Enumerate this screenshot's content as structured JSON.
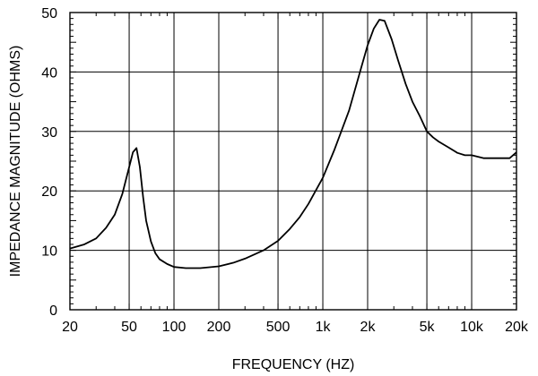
{
  "chart_data": {
    "type": "line",
    "xlabel": "FREQUENCY  (HZ)",
    "ylabel": "IMPEDANCE MAGNITUDE  (OHMS)",
    "x_scale": "log",
    "xlim": [
      20,
      20000
    ],
    "ylim": [
      0,
      50
    ],
    "grid": true,
    "x_ticks": [
      {
        "value": 20,
        "label": "20"
      },
      {
        "value": 50,
        "label": "50"
      },
      {
        "value": 100,
        "label": "100"
      },
      {
        "value": 200,
        "label": "200"
      },
      {
        "value": 500,
        "label": "500"
      },
      {
        "value": 1000,
        "label": "1k"
      },
      {
        "value": 2000,
        "label": "2k"
      },
      {
        "value": 5000,
        "label": "5k"
      },
      {
        "value": 10000,
        "label": "10k"
      },
      {
        "value": 20000,
        "label": "20k"
      }
    ],
    "y_ticks": [
      {
        "value": 0,
        "label": "0"
      },
      {
        "value": 10,
        "label": "10"
      },
      {
        "value": 20,
        "label": "20"
      },
      {
        "value": 30,
        "label": "30"
      },
      {
        "value": 40,
        "label": "40"
      },
      {
        "value": 50,
        "label": "50"
      }
    ],
    "series": [
      {
        "color": "#000000",
        "x": [
          20,
          25,
          30,
          35,
          40,
          45,
          50,
          53,
          56,
          59,
          62,
          65,
          70,
          75,
          80,
          90,
          100,
          120,
          150,
          200,
          250,
          300,
          400,
          500,
          600,
          700,
          800,
          1000,
          1200,
          1500,
          1800,
          2000,
          2200,
          2400,
          2600,
          2900,
          3200,
          3600,
          4000,
          4500,
          5000,
          5500,
          6000,
          7000,
          8000,
          9000,
          10000,
          12000,
          15000,
          18000,
          20000
        ],
        "y": [
          10.3,
          11,
          12,
          13.8,
          16,
          19.5,
          24,
          26.5,
          27.2,
          24,
          19,
          15,
          11.5,
          9.5,
          8.5,
          7.7,
          7.2,
          7,
          7,
          7.3,
          7.9,
          8.6,
          10,
          11.6,
          13.6,
          15.6,
          17.8,
          22.2,
          27,
          33.5,
          40.5,
          44.5,
          47.3,
          48.8,
          48.6,
          45.5,
          42,
          38,
          35,
          32.5,
          30,
          29,
          28.3,
          27.3,
          26.4,
          26,
          26,
          25.5,
          25.5,
          25.5,
          26.5
        ]
      }
    ]
  }
}
